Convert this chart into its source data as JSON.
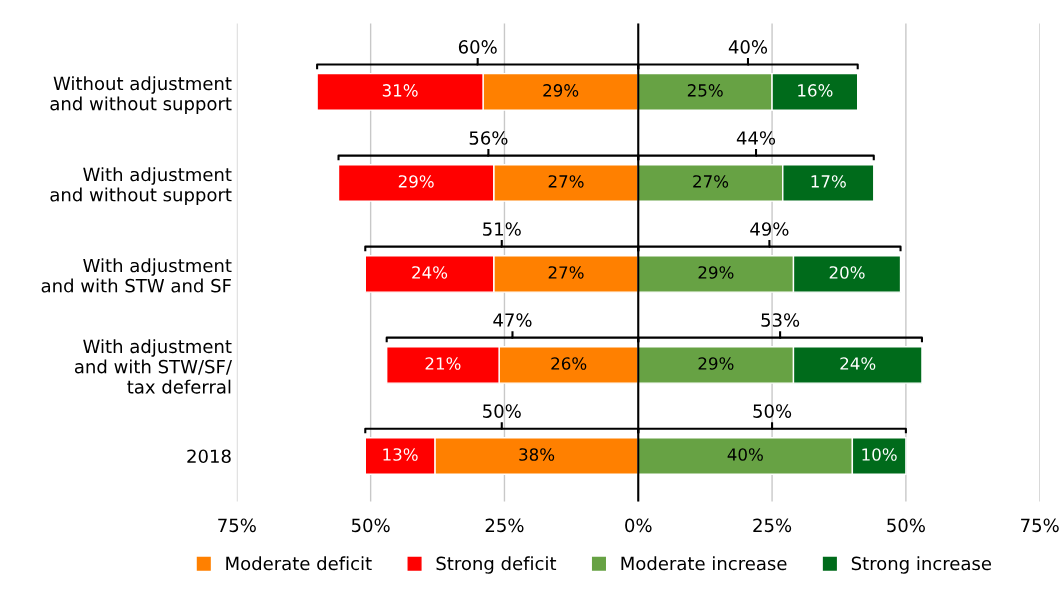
{
  "chart_data": {
    "type": "bar",
    "orientation": "horizontal",
    "categories": [
      "Without adjustment\nand without support",
      "With adjustment\nand without support",
      "With adjustment\nand with STW and SF",
      "With adjustment\nand with STW/SF/\ntax deferral",
      "2018"
    ],
    "series": [
      {
        "name": "Moderate deficit",
        "color": "#ff8000",
        "values": [
          29,
          27,
          27,
          26,
          38
        ],
        "base": [
          -29,
          -27,
          -27,
          -26,
          -38
        ],
        "value_labels": [
          "29%",
          "27%",
          "27%",
          "26%",
          "38%"
        ]
      },
      {
        "name": "Strong deficit",
        "color": "#ff0000",
        "values": [
          31,
          29,
          24,
          21,
          13
        ],
        "base": [
          -60,
          -56,
          -51,
          -47,
          -51
        ],
        "value_labels": [
          "31%",
          "29%",
          "24%",
          "21%",
          "13%"
        ]
      },
      {
        "name": "Moderate increase",
        "color": "#67a244",
        "values": [
          25,
          27,
          29,
          29,
          40
        ],
        "base": [
          0,
          0,
          0,
          0,
          0
        ],
        "value_labels": [
          "25%",
          "27%",
          "29%",
          "29%",
          "40%"
        ]
      },
      {
        "name": "Strong increase",
        "color": "#006b1b",
        "values": [
          16,
          17,
          20,
          24,
          10
        ],
        "base": [
          25,
          27,
          29,
          29,
          40
        ],
        "value_labels": [
          "16%",
          "17%",
          "20%",
          "24%",
          "10%"
        ]
      }
    ],
    "totals": [
      [
        "60%",
        "40%"
      ],
      [
        "56%",
        "44%"
      ],
      [
        "51%",
        "49%"
      ],
      [
        "47%",
        "53%"
      ],
      [
        "50%",
        "50%"
      ]
    ],
    "xlim": [
      -75,
      75
    ],
    "xticks": [
      {
        "value": -75,
        "label": "75%"
      },
      {
        "value": -50,
        "label": "50%"
      },
      {
        "value": -25,
        "label": "25%"
      },
      {
        "value": 0,
        "label": "0%"
      },
      {
        "value": 25,
        "label": "25%"
      },
      {
        "value": 50,
        "label": "50%"
      },
      {
        "value": 75,
        "label": "75%"
      }
    ],
    "ref_lines": [
      {
        "axis": "x",
        "value": 0,
        "color": "#000000"
      }
    ],
    "grid": "x",
    "legend": "bottom"
  }
}
